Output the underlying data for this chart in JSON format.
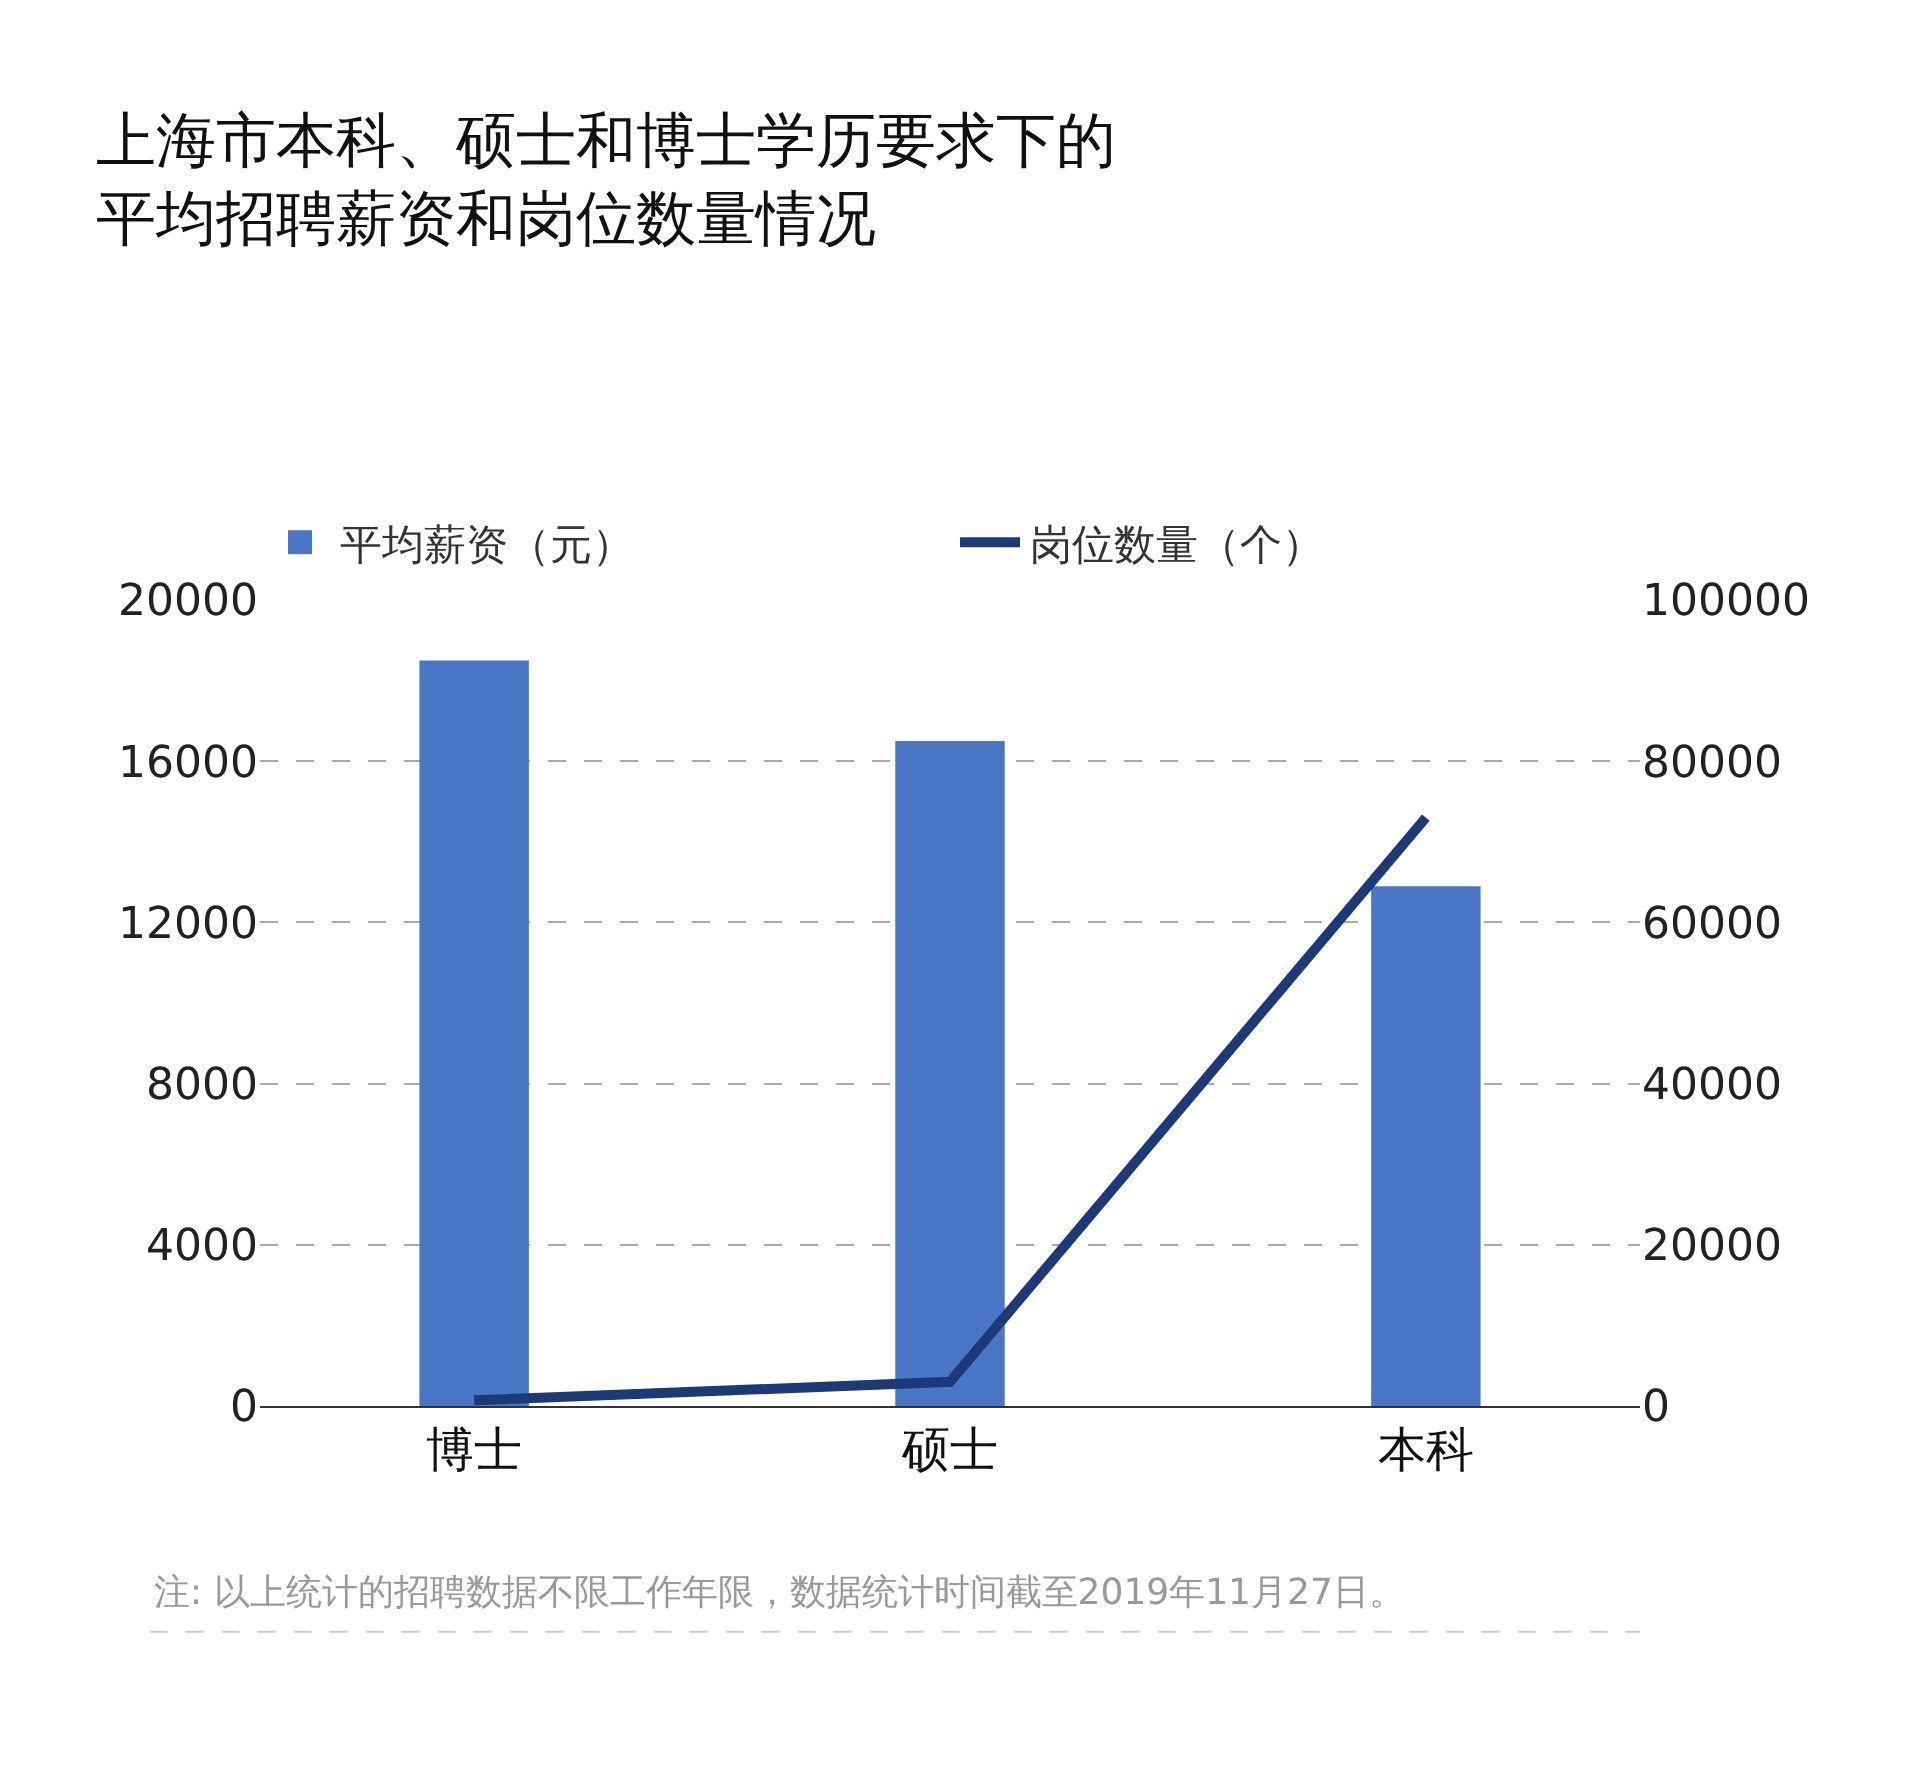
{
  "chart_data": {
    "type": "bar",
    "title": "上海市本科、硕士和博士学历要求下的平均招聘薪资和岗位数量情况",
    "categories": [
      "博士",
      "硕士",
      "本科"
    ],
    "series": [
      {
        "name": "平均薪资（元）",
        "color": "#4a76c6",
        "values": [
          18500,
          16500,
          12900
        ]
      },
      {
        "name": "岗位数量（个）",
        "type": "line",
        "axis": "y2",
        "color": "#1c3a78",
        "values": [
          700,
          3000,
          73000
        ]
      }
    ],
    "ylim": [
      0,
      20000
    ],
    "yticks": [
      0,
      4000,
      8000,
      12000,
      16000,
      20000
    ],
    "y2lim": [
      0,
      100000
    ],
    "y2ticks": [
      0,
      20000,
      40000,
      60000,
      80000,
      100000
    ],
    "grid": "y",
    "legend": "top",
    "marker": "none",
    "line_style": "solid",
    "annotations": [
      "注: 以上统计的招聘数据不限工作年限，数据统计时间截至2019年11月27日。"
    ]
  }
}
